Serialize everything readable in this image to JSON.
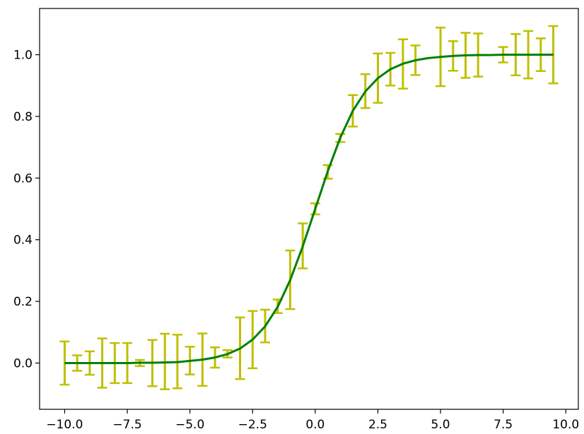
{
  "chart_data": {
    "type": "line",
    "title": "",
    "xlabel": "",
    "ylabel": "",
    "xlim": [
      -11.0,
      10.5
    ],
    "ylim": [
      -0.15,
      1.15
    ],
    "xticks": [
      -10.0,
      -7.5,
      -5.0,
      -2.5,
      0.0,
      2.5,
      5.0,
      7.5,
      10.0
    ],
    "xtick_labels": [
      "−10.0",
      "−7.5",
      "−5.0",
      "−2.5",
      "0.0",
      "2.5",
      "5.0",
      "7.5",
      "10.0"
    ],
    "yticks": [
      0.0,
      0.2,
      0.4,
      0.6,
      0.8,
      1.0
    ],
    "ytick_labels": [
      "0.0",
      "0.2",
      "0.4",
      "0.6",
      "0.8",
      "1.0"
    ],
    "grid": false,
    "legend": "none",
    "series": [
      {
        "kind": "errorbar",
        "color": "#bfbf00",
        "x": [
          -10.0,
          -9.5,
          -9.0,
          -8.5,
          -8.0,
          -7.5,
          -7.0,
          -6.5,
          -6.0,
          -5.5,
          -5.0,
          -4.5,
          -4.0,
          -3.5,
          -3.0,
          -2.5,
          -2.0,
          -1.5,
          -1.0,
          -0.5,
          0.0,
          0.5,
          1.0,
          1.5,
          2.0,
          2.5,
          3.0,
          3.5,
          4.0,
          5.0,
          5.5,
          6.0,
          6.5,
          7.5,
          8.0,
          8.5,
          9.0,
          9.5
        ],
        "y": [
          0.0,
          0.0,
          0.0,
          0.0,
          0.0,
          0.0,
          0.0,
          0.0,
          0.005,
          0.005,
          0.008,
          0.011,
          0.018,
          0.03,
          0.048,
          0.076,
          0.12,
          0.184,
          0.27,
          0.38,
          0.5,
          0.62,
          0.73,
          0.818,
          0.882,
          0.924,
          0.953,
          0.97,
          0.982,
          0.993,
          0.996,
          0.998,
          0.999,
          1.0,
          1.0,
          1.0,
          1.0,
          1.0
        ],
        "yerr": [
          0.07,
          0.025,
          0.038,
          0.08,
          0.065,
          0.065,
          0.01,
          0.075,
          0.09,
          0.087,
          0.045,
          0.085,
          0.033,
          0.012,
          0.1,
          0.093,
          0.053,
          0.022,
          0.095,
          0.073,
          0.018,
          0.022,
          0.013,
          0.051,
          0.055,
          0.08,
          0.053,
          0.08,
          0.048,
          0.095,
          0.048,
          0.073,
          0.07,
          0.025,
          0.067,
          0.077,
          0.053,
          0.093
        ]
      },
      {
        "kind": "line",
        "color": "#008000",
        "function": "logistic",
        "x": [
          -10.0,
          -9.5,
          -9.0,
          -8.5,
          -8.0,
          -7.5,
          -7.0,
          -6.5,
          -6.0,
          -5.5,
          -5.0,
          -4.5,
          -4.0,
          -3.5,
          -3.0,
          -2.5,
          -2.0,
          -1.5,
          -1.0,
          -0.5,
          0.0,
          0.5,
          1.0,
          1.5,
          2.0,
          2.5,
          3.0,
          3.5,
          4.0,
          4.5,
          5.0,
          5.5,
          6.0,
          6.5,
          7.0,
          7.5,
          8.0,
          8.5,
          9.0,
          9.5
        ],
        "y": [
          0.0,
          0.0,
          0.0,
          0.0,
          0.0,
          0.0,
          0.001,
          0.001,
          0.002,
          0.003,
          0.007,
          0.011,
          0.018,
          0.029,
          0.047,
          0.076,
          0.119,
          0.182,
          0.269,
          0.378,
          0.5,
          0.622,
          0.731,
          0.818,
          0.881,
          0.924,
          0.953,
          0.971,
          0.982,
          0.989,
          0.993,
          0.996,
          0.998,
          0.999,
          0.999,
          1.0,
          1.0,
          1.0,
          1.0,
          1.0
        ]
      }
    ]
  }
}
